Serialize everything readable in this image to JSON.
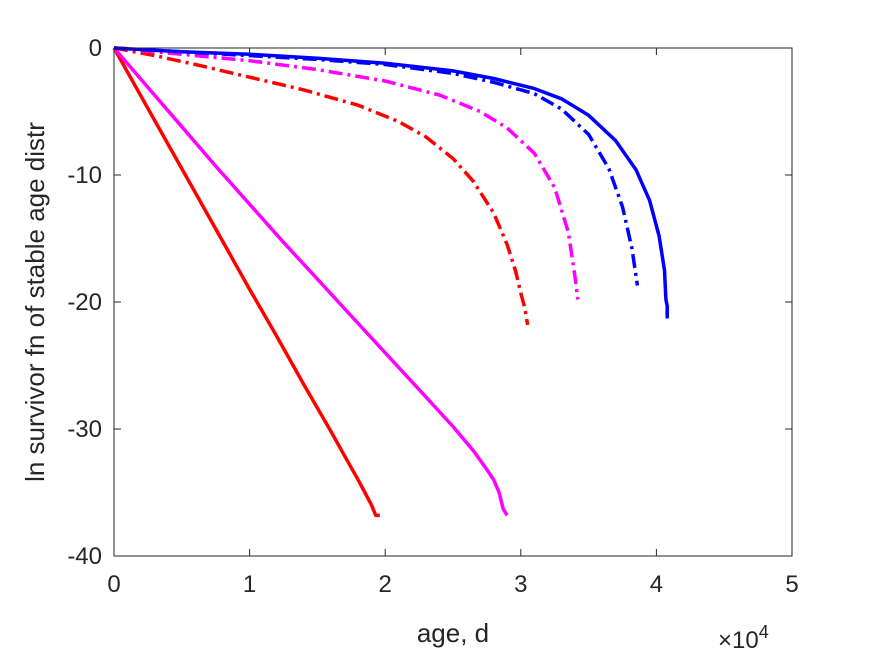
{
  "chart_data": {
    "type": "line",
    "xlabel": "age, d",
    "ylabel": "ln survivor fn of stable age distr",
    "xlim": [
      0,
      50000
    ],
    "ylim": [
      -40,
      0
    ],
    "xticks": [
      0,
      10000,
      20000,
      30000,
      40000,
      50000
    ],
    "xtick_labels": [
      "0",
      "1",
      "2",
      "3",
      "4",
      "5"
    ],
    "yticks": [
      0,
      -10,
      -20,
      -30,
      -40
    ],
    "ytick_labels": [
      "0",
      "-10",
      "-20",
      "-30",
      "-40"
    ],
    "x_exponent_label": {
      "base": "×10",
      "exponent": "4"
    },
    "grid": false,
    "series": [
      {
        "color": "#ff0000",
        "dash": "solid",
        "x": [
          0,
          2000,
          4000,
          6000,
          8000,
          10000,
          12000,
          14000,
          16000,
          17000,
          18000,
          18500,
          19000,
          19300,
          19600
        ],
        "y": [
          0,
          -3.8,
          -7.6,
          -11.4,
          -15.2,
          -19.0,
          -22.7,
          -26.5,
          -30.2,
          -32.1,
          -34.0,
          -35.0,
          -36.0,
          -36.8,
          -36.8
        ]
      },
      {
        "color": "#ff00ff",
        "dash": "solid",
        "x": [
          0,
          2500,
          5000,
          7500,
          10000,
          12500,
          15000,
          17500,
          20000,
          22500,
          25000,
          26500,
          27500,
          28000,
          28400,
          28700,
          29000
        ],
        "y": [
          0,
          -3.1,
          -6.2,
          -9.3,
          -12.3,
          -15.3,
          -18.2,
          -21.1,
          -24.0,
          -26.9,
          -29.8,
          -31.7,
          -33.2,
          -34.0,
          -35.0,
          -36.3,
          -36.8
        ]
      },
      {
        "color": "#ff0000",
        "dash": "dashdot",
        "x": [
          0,
          3000,
          6000,
          10000,
          14000,
          18000,
          21000,
          23000,
          25000,
          26500,
          28000,
          29000,
          29600,
          30000,
          30300,
          30500
        ],
        "y": [
          0,
          -0.6,
          -1.3,
          -2.3,
          -3.3,
          -4.5,
          -5.8,
          -7.0,
          -8.7,
          -10.5,
          -13.0,
          -15.5,
          -17.5,
          -19.3,
          -20.5,
          -21.8
        ]
      },
      {
        "color": "#ff00ff",
        "dash": "dashdot",
        "x": [
          0,
          5000,
          10000,
          15000,
          20000,
          24000,
          27000,
          29000,
          31000,
          32500,
          33500,
          34000,
          34200
        ],
        "y": [
          0,
          -0.5,
          -1.0,
          -1.7,
          -2.6,
          -3.7,
          -5.0,
          -6.3,
          -8.3,
          -11.0,
          -14.5,
          -18.0,
          -19.8
        ]
      },
      {
        "color": "#0000ff",
        "dash": "dashdot",
        "x": [
          0,
          5000,
          10000,
          15000,
          20000,
          25000,
          28000,
          31000,
          33000,
          35000,
          36500,
          37500,
          38200,
          38600
        ],
        "y": [
          0,
          -0.3,
          -0.6,
          -0.9,
          -1.3,
          -2.0,
          -2.7,
          -3.6,
          -4.8,
          -6.8,
          -9.5,
          -12.5,
          -15.8,
          -18.7
        ]
      },
      {
        "color": "#0000ff",
        "dash": "solid",
        "x": [
          0,
          5000,
          10000,
          15000,
          20000,
          25000,
          28000,
          31000,
          33000,
          35000,
          37000,
          38500,
          39500,
          40200,
          40600,
          40700,
          40800,
          40800
        ],
        "y": [
          0,
          -0.3,
          -0.5,
          -0.8,
          -1.2,
          -1.8,
          -2.4,
          -3.2,
          -4.0,
          -5.3,
          -7.3,
          -9.6,
          -12.0,
          -14.8,
          -17.5,
          -19.8,
          -20.3,
          -21.3
        ]
      }
    ]
  }
}
